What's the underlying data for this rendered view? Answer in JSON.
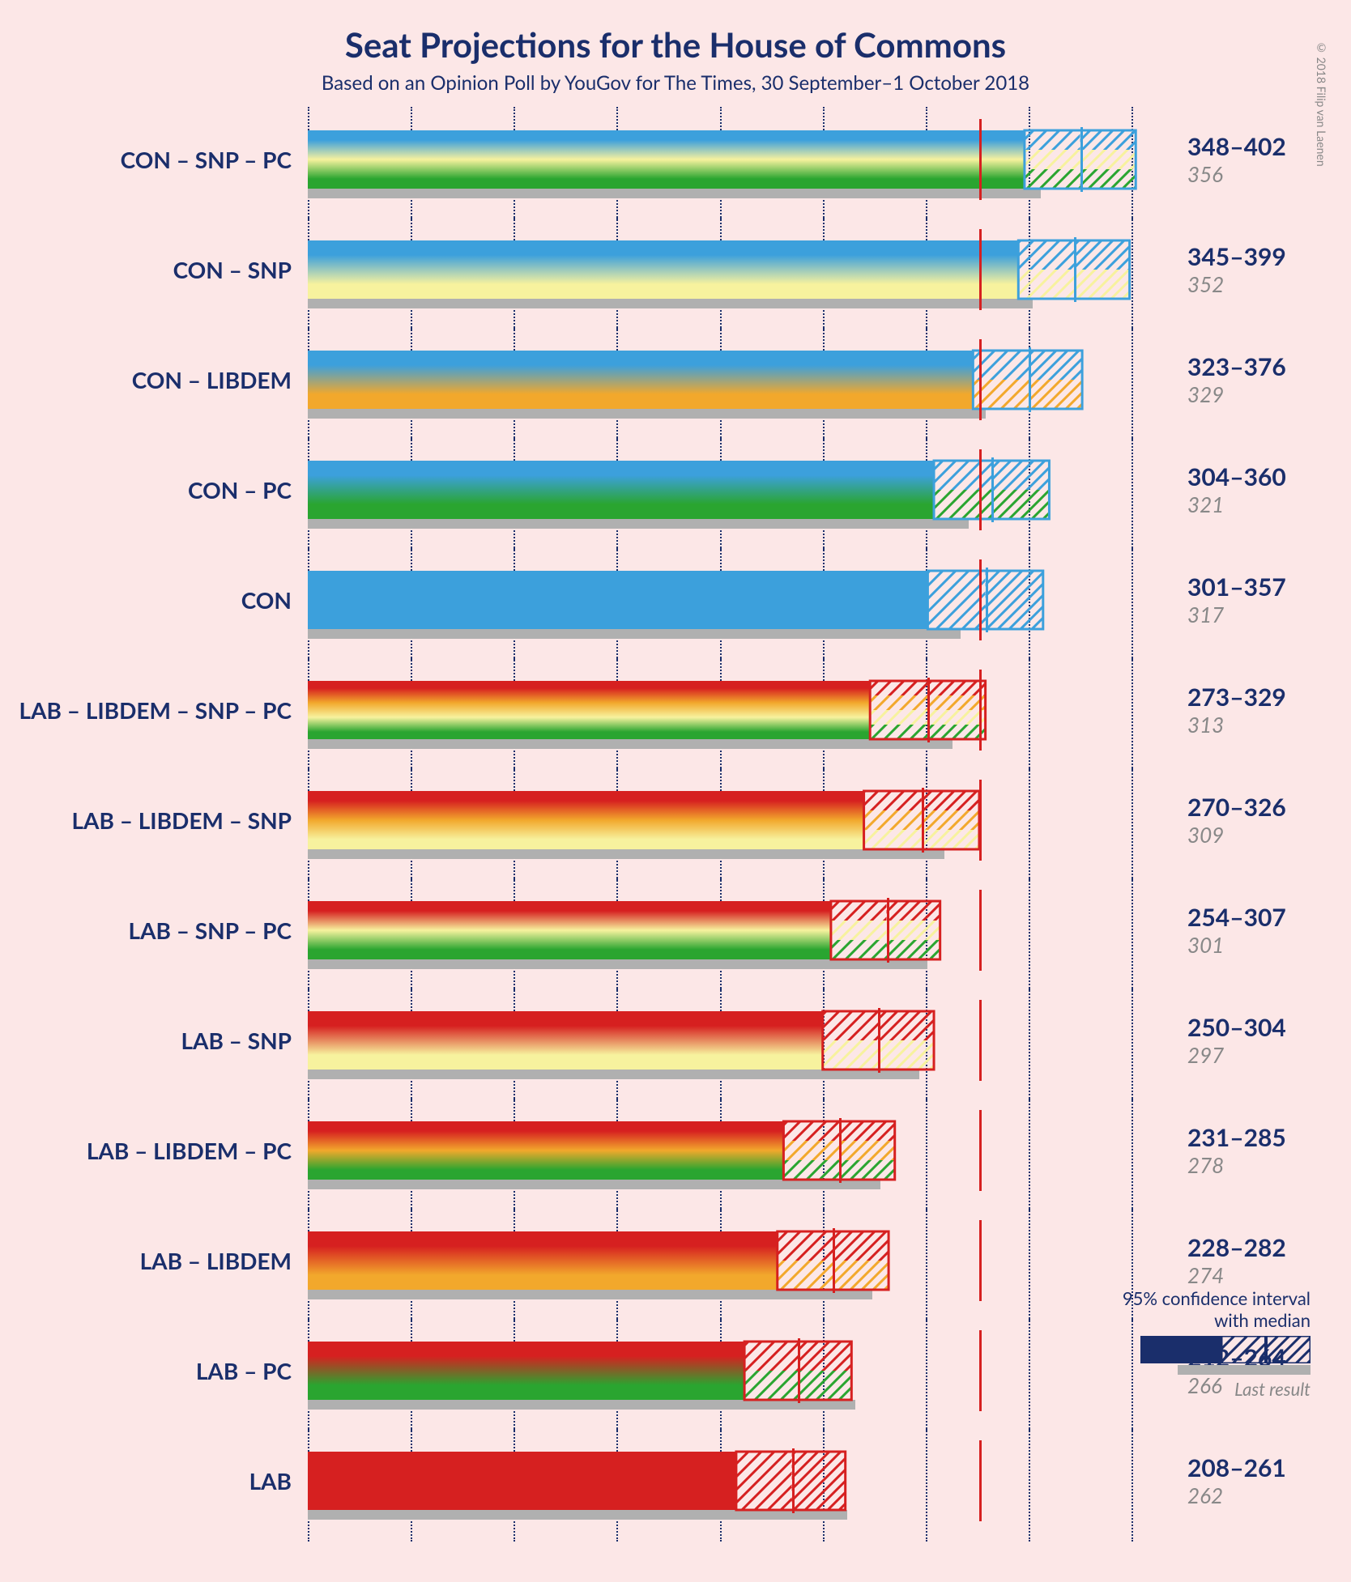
{
  "title": "Seat Projections for the House of Commons",
  "subtitle": "Based on an Opinion Poll by YouGov for The Times, 30 September–1 October 2018",
  "copyright": "© 2018 Filip van Laenen",
  "background_color": "#fce7e7",
  "text_color": "#1a2e6b",
  "grid_color": "#1a2e6b",
  "last_result_color": "#b0b0b0",
  "majority_color": "#d62020",
  "party_colors": {
    "CON": "#3ca0dc",
    "LAB": "#d62020",
    "LIBDEM": "#f2a82c",
    "SNP": "#f7f29e",
    "PC": "#2aa530"
  },
  "x_axis": {
    "min": 0,
    "max": 420,
    "tick_step": 50,
    "majority_threshold": 326
  },
  "legend": {
    "ci_line1": "95% confidence interval",
    "ci_line2": "with median",
    "last_result": "Last result"
  },
  "rows": [
    {
      "label": "CON – SNP – PC",
      "parties": [
        "CON",
        "SNP",
        "PC"
      ],
      "low": 348,
      "median": 375,
      "high": 402,
      "last_result": 356
    },
    {
      "label": "CON – SNP",
      "parties": [
        "CON",
        "SNP"
      ],
      "low": 345,
      "median": 372,
      "high": 399,
      "last_result": 352
    },
    {
      "label": "CON – LIBDEM",
      "parties": [
        "CON",
        "LIBDEM"
      ],
      "low": 323,
      "median": 350,
      "high": 376,
      "last_result": 329
    },
    {
      "label": "CON – PC",
      "parties": [
        "CON",
        "PC"
      ],
      "low": 304,
      "median": 332,
      "high": 360,
      "last_result": 321
    },
    {
      "label": "CON",
      "parties": [
        "CON"
      ],
      "low": 301,
      "median": 329,
      "high": 357,
      "last_result": 317
    },
    {
      "label": "LAB – LIBDEM – SNP – PC",
      "parties": [
        "LAB",
        "LIBDEM",
        "SNP",
        "PC"
      ],
      "low": 273,
      "median": 301,
      "high": 329,
      "last_result": 313
    },
    {
      "label": "LAB – LIBDEM – SNP",
      "parties": [
        "LAB",
        "LIBDEM",
        "SNP"
      ],
      "low": 270,
      "median": 298,
      "high": 326,
      "last_result": 309
    },
    {
      "label": "LAB – SNP – PC",
      "parties": [
        "LAB",
        "SNP",
        "PC"
      ],
      "low": 254,
      "median": 281,
      "high": 307,
      "last_result": 301
    },
    {
      "label": "LAB – SNP",
      "parties": [
        "LAB",
        "SNP"
      ],
      "low": 250,
      "median": 277,
      "high": 304,
      "last_result": 297
    },
    {
      "label": "LAB – LIBDEM – PC",
      "parties": [
        "LAB",
        "LIBDEM",
        "PC"
      ],
      "low": 231,
      "median": 258,
      "high": 285,
      "last_result": 278
    },
    {
      "label": "LAB – LIBDEM",
      "parties": [
        "LAB",
        "LIBDEM"
      ],
      "low": 228,
      "median": 255,
      "high": 282,
      "last_result": 274
    },
    {
      "label": "LAB – PC",
      "parties": [
        "LAB",
        "PC"
      ],
      "low": 212,
      "median": 238,
      "high": 264,
      "last_result": 266
    },
    {
      "label": "LAB",
      "parties": [
        "LAB"
      ],
      "low": 208,
      "median": 235,
      "high": 261,
      "last_result": 262
    }
  ]
}
